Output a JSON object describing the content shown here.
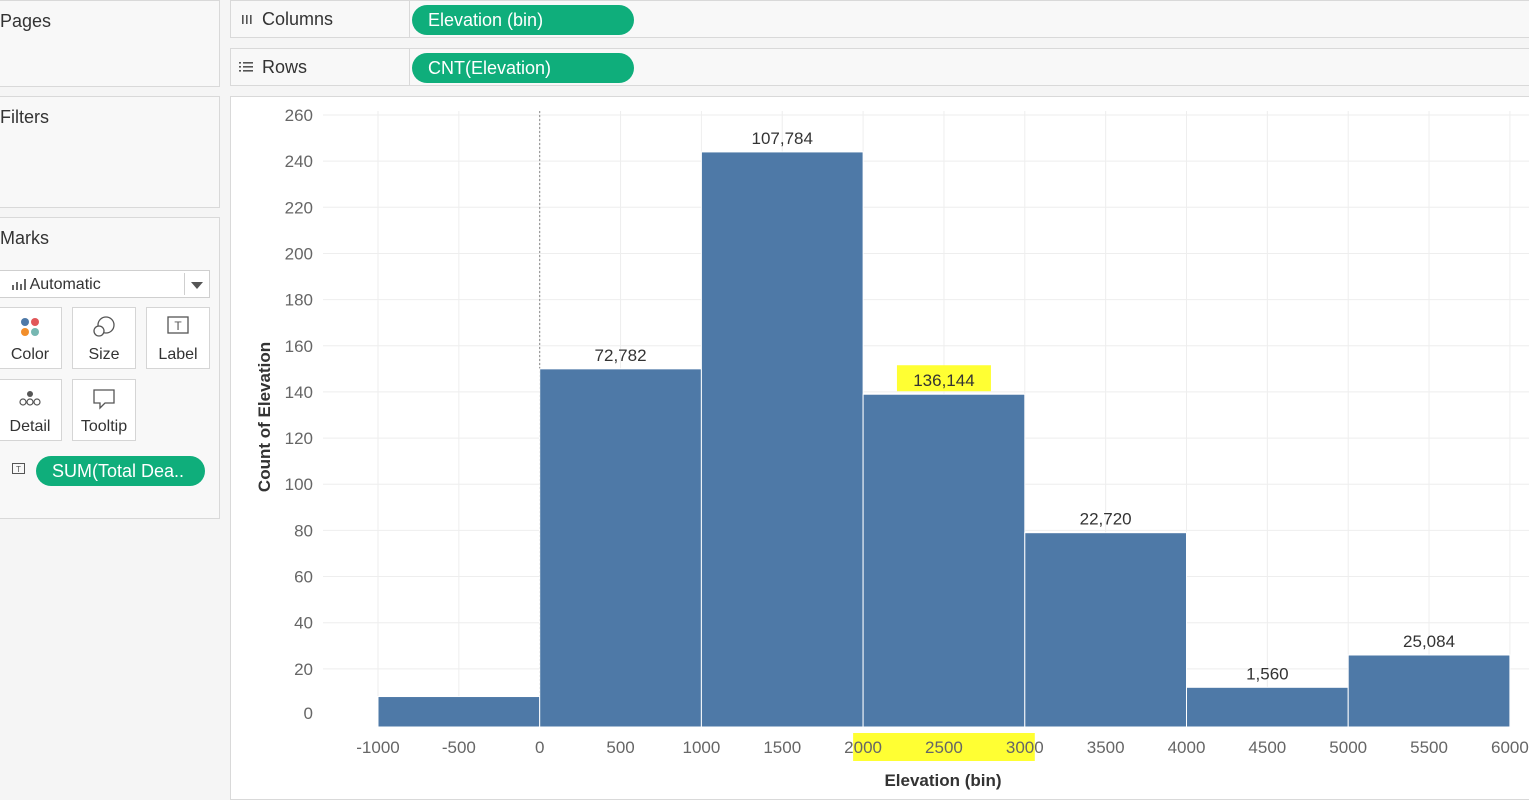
{
  "sidebar": {
    "pages_title": "Pages",
    "filters_title": "Filters",
    "marks_title": "Marks",
    "mark_type": "Automatic",
    "buttons": [
      {
        "id": "color",
        "label": "Color",
        "icon": "color-dots-icon"
      },
      {
        "id": "size",
        "label": "Size",
        "icon": "size-icon"
      },
      {
        "id": "label",
        "label": "Label",
        "icon": "label-icon"
      },
      {
        "id": "detail",
        "label": "Detail",
        "icon": "detail-icon"
      },
      {
        "id": "tooltip",
        "label": "Tooltip",
        "icon": "tooltip-icon"
      }
    ],
    "label_pill": "SUM(Total Dea..",
    "label_pill_icon": "text-label-icon"
  },
  "shelves": {
    "columns": {
      "label": "Columns",
      "icon": "columns-icon",
      "pill": "Elevation (bin)"
    },
    "rows": {
      "label": "Rows",
      "icon": "rows-icon",
      "pill": "CNT(Elevation)"
    }
  },
  "colors": {
    "pill": "#0fae7b",
    "bar": "#4e79a7",
    "highlight": "#ffff33"
  },
  "chart_data": {
    "type": "bar",
    "xlabel": "Elevation (bin)",
    "ylabel": "Count of Elevation",
    "x_ticks": [
      -1000,
      -500,
      0,
      500,
      1000,
      1500,
      2000,
      2500,
      3000,
      3500,
      4000,
      4500,
      5000,
      5500,
      6000
    ],
    "y_ticks": [
      0,
      20,
      40,
      60,
      80,
      100,
      120,
      140,
      160,
      180,
      200,
      220,
      240,
      260
    ],
    "ylim": [
      0,
      260
    ],
    "xlim": [
      -1000,
      6000
    ],
    "bin_width": 1000,
    "bins": [
      {
        "start": -1000,
        "count": 8,
        "label": ""
      },
      {
        "start": 0,
        "count": 150,
        "label": "72,782"
      },
      {
        "start": 1000,
        "count": 244,
        "label": "107,784"
      },
      {
        "start": 2000,
        "count": 139,
        "label": "136,144"
      },
      {
        "start": 3000,
        "count": 79,
        "label": "22,720"
      },
      {
        "start": 4000,
        "count": 12,
        "label": "1,560"
      },
      {
        "start": 5000,
        "count": 26,
        "label": "25,084"
      }
    ],
    "highlighted_label": "136,144",
    "grid": true
  }
}
